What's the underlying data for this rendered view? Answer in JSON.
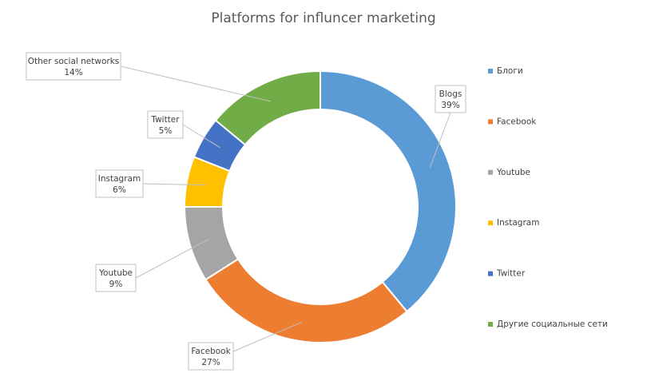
{
  "chart_data": {
    "type": "pie",
    "variant": "doughnut",
    "title": "Platforms for influncer marketing",
    "legend_position": "right",
    "series": [
      {
        "label": "Blogs",
        "legend": "Блоги",
        "value": 39,
        "value_label": "39%",
        "color": "#5B9BD5"
      },
      {
        "label": "Facebook",
        "legend": "Facebook",
        "value": 27,
        "value_label": "27%",
        "color": "#ED7D31"
      },
      {
        "label": "Youtube",
        "legend": "Youtube",
        "value": 9,
        "value_label": "9%",
        "color": "#A5A5A5"
      },
      {
        "label": "Instagram",
        "legend": "Instagram",
        "value": 6,
        "value_label": "6%",
        "color": "#FFC000"
      },
      {
        "label": "Twitter",
        "legend": "Twitter",
        "value": 5,
        "value_label": "5%",
        "color": "#4472C4"
      },
      {
        "label": "Other social networks",
        "legend": "Другие социальные сети",
        "value": 14,
        "value_label": "14%",
        "color": "#70AD47"
      }
    ]
  }
}
